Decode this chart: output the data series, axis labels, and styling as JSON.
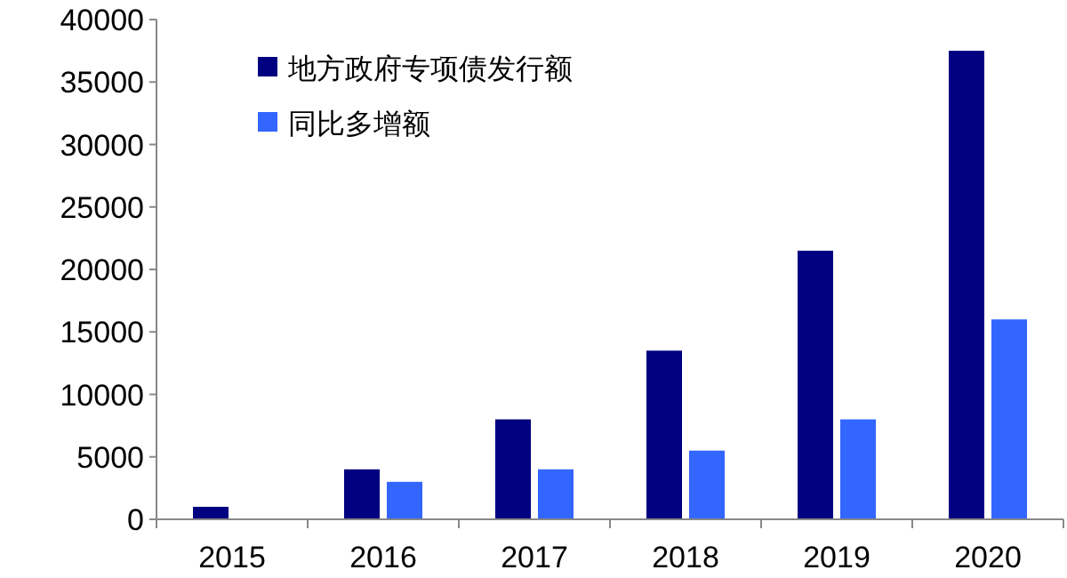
{
  "chart_data": {
    "type": "bar",
    "categories": [
      "2015",
      "2016",
      "2017",
      "2018",
      "2019",
      "2020"
    ],
    "series": [
      {
        "name": "地方政府专项债发行额",
        "color": "#000080",
        "values": [
          1000,
          4000,
          8000,
          13500,
          21500,
          37500
        ]
      },
      {
        "name": "同比多增额",
        "color": "#3366ff",
        "values": [
          null,
          3000,
          4000,
          5500,
          8000,
          16000
        ]
      }
    ],
    "ylim": [
      0,
      40000
    ],
    "yticks": [
      0,
      5000,
      10000,
      15000,
      20000,
      25000,
      30000,
      35000,
      40000
    ],
    "legend": "top left",
    "grid": false
  }
}
